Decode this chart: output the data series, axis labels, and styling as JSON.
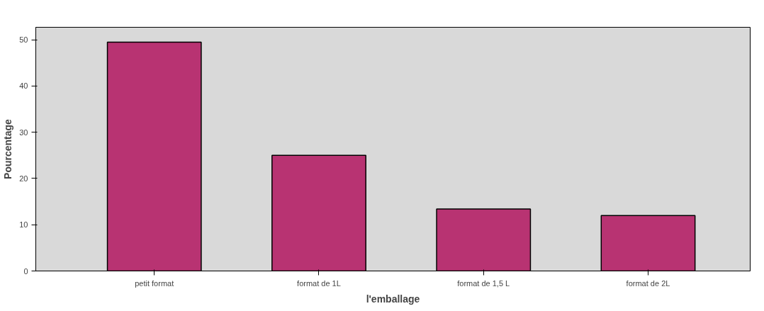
{
  "chart_data": {
    "type": "bar",
    "xlabel": "l'emballage",
    "ylabel": "Pourcentage",
    "categories": [
      "petit format",
      "format de 1L",
      "format de 1,5 L",
      "format de 2L"
    ],
    "values": [
      49.5,
      25.0,
      13.4,
      12.0
    ],
    "color": "#b83372",
    "ylim": [
      0,
      52.7
    ],
    "yticks": [
      0,
      10,
      20,
      30,
      40,
      50
    ],
    "grid": false
  }
}
